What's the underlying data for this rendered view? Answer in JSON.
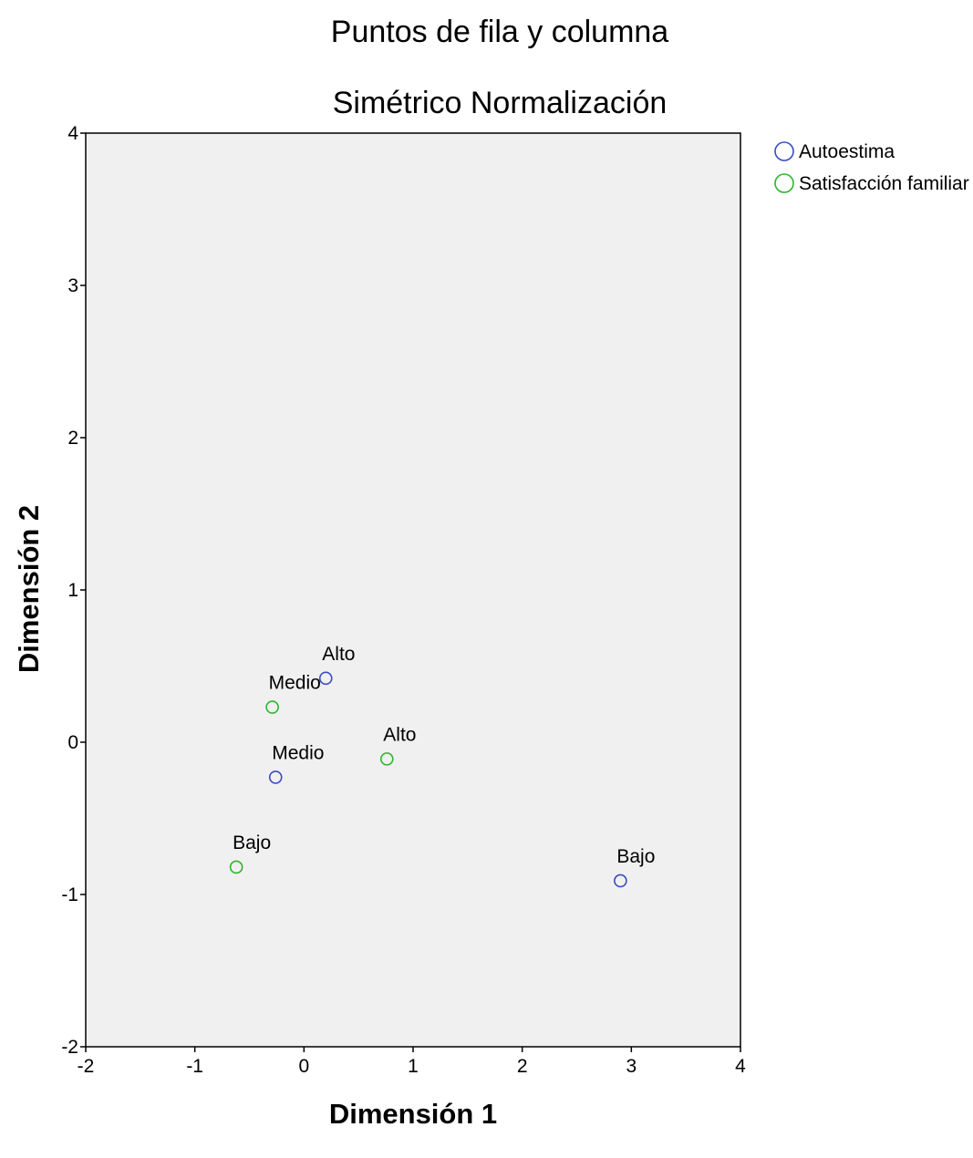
{
  "chart_data": {
    "type": "scatter",
    "title": "Puntos de fila y columna",
    "subtitle": "Simétrico Normalización",
    "xlabel": "Dimensión 1",
    "ylabel": "Dimensión 2",
    "xlim": [
      -2,
      4
    ],
    "ylim": [
      -2,
      4
    ],
    "xticks": [
      "-2",
      "-1",
      "0",
      "1",
      "2",
      "3",
      "4"
    ],
    "yticks": [
      "-2",
      "-1",
      "0",
      "1",
      "2",
      "3",
      "4"
    ],
    "xtick_values": [
      -2,
      -1,
      0,
      1,
      2,
      3,
      4
    ],
    "ytick_values": [
      -2,
      -1,
      0,
      1,
      2,
      3,
      4
    ],
    "grid": false,
    "background": "#f0f0f0",
    "legend_position": "top-right",
    "series": [
      {
        "name": "Autoestima",
        "color": "#3b4cc0",
        "marker": "open-circle",
        "points": [
          {
            "label": "Alto",
            "x": 0.2,
            "y": 0.42
          },
          {
            "label": "Medio",
            "x": -0.26,
            "y": -0.23
          },
          {
            "label": "Bajo",
            "x": 2.9,
            "y": -0.91
          }
        ]
      },
      {
        "name": "Satisfacción familiar",
        "color": "#2db52d",
        "marker": "open-circle",
        "points": [
          {
            "label": "Medio",
            "x": -0.29,
            "y": 0.23
          },
          {
            "label": "Alto",
            "x": 0.76,
            "y": -0.11
          },
          {
            "label": "Bajo",
            "x": -0.62,
            "y": -0.82
          }
        ]
      }
    ]
  }
}
